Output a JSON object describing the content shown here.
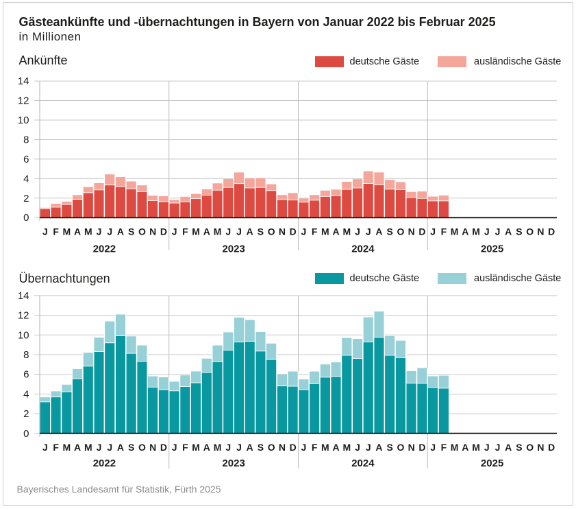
{
  "page": {
    "title": "Gästeankünfte und -übernachtungen in Bayern von Januar 2022 bis Februar 2025",
    "subtitle": "in Millionen",
    "footer": "Bayerisches Landesamt für Statistik, Fürth 2025"
  },
  "colors": {
    "arrivals_domestic": "#dd4a42",
    "arrivals_foreign": "#f4a69b",
    "overnight_domestic": "#0a98a0",
    "overnight_foreign": "#98d0d8",
    "gridline": "#c8c8c8",
    "axis_line": "#b0b0b0",
    "baseline": "#21211f",
    "year_separator": "#bcbcbc",
    "text": "#1d1d1b",
    "footer_text": "#8b8b8b"
  },
  "legend_labels": {
    "domestic": "deutsche Gäste",
    "foreign": "ausländische Gäste"
  },
  "chart_data": [
    {
      "type": "bar",
      "stacked": true,
      "title": "Ankünfte",
      "unit": "in Millionen",
      "ylim": [
        0,
        14
      ],
      "yticks": [
        0,
        2,
        4,
        6,
        8,
        10,
        12,
        14
      ],
      "grid": true,
      "legend_position": "top-right",
      "month_letters": [
        "J",
        "F",
        "M",
        "A",
        "M",
        "J",
        "J",
        "A",
        "S",
        "O",
        "N",
        "D"
      ],
      "years": [
        "2022",
        "2023",
        "2024",
        "2025"
      ],
      "x_range": "Januar 2022 - Februar 2025",
      "series": [
        {
          "name": "deutsche Gäste",
          "color": "#dd4a42",
          "values": [
            0.86,
            1.04,
            1.31,
            1.84,
            2.52,
            2.81,
            3.31,
            3.15,
            2.92,
            2.63,
            1.71,
            1.6,
            1.46,
            1.59,
            1.91,
            2.27,
            2.78,
            3.06,
            3.45,
            3.01,
            3.06,
            2.74,
            1.82,
            1.77,
            1.55,
            1.75,
            2.14,
            2.2,
            2.86,
            3.01,
            3.46,
            3.33,
            2.88,
            2.83,
            2.02,
            1.93,
            1.68,
            1.68
          ]
        },
        {
          "name": "ausländische Gäste",
          "color": "#f4a69b",
          "values": [
            0.15,
            0.38,
            0.33,
            0.47,
            0.61,
            0.72,
            1.12,
            1.01,
            0.79,
            0.68,
            0.54,
            0.6,
            0.36,
            0.55,
            0.52,
            0.63,
            0.73,
            0.89,
            1.18,
            1.02,
            0.99,
            0.68,
            0.5,
            0.75,
            0.4,
            0.57,
            0.63,
            0.67,
            0.81,
            0.93,
            1.29,
            1.3,
            0.99,
            0.81,
            0.61,
            0.75,
            0.48,
            0.59
          ]
        }
      ]
    },
    {
      "type": "bar",
      "stacked": true,
      "title": "Übernachtungen",
      "unit": "in Millionen",
      "ylim": [
        0,
        14
      ],
      "yticks": [
        0,
        2,
        4,
        6,
        8,
        10,
        12,
        14
      ],
      "grid": true,
      "legend_position": "top-right",
      "month_letters": [
        "J",
        "F",
        "M",
        "A",
        "M",
        "J",
        "J",
        "A",
        "S",
        "O",
        "N",
        "D"
      ],
      "years": [
        "2022",
        "2023",
        "2024",
        "2025"
      ],
      "x_range": "Januar 2022 - Februar 2025",
      "series": [
        {
          "name": "deutsche Gäste",
          "color": "#0a98a0",
          "values": [
            3.17,
            3.67,
            4.2,
            5.53,
            6.8,
            8.28,
            9.17,
            9.89,
            8.1,
            7.28,
            4.67,
            4.41,
            4.29,
            4.73,
            5.11,
            6.15,
            7.25,
            8.43,
            9.25,
            9.32,
            8.33,
            7.48,
            4.79,
            4.76,
            4.41,
            5.02,
            5.68,
            5.76,
            7.9,
            7.58,
            9.26,
            9.73,
            7.9,
            7.67,
            5.07,
            5.05,
            4.64,
            4.56
          ]
        },
        {
          "name": "ausländische Gäste",
          "color": "#98d0d8",
          "values": [
            0.5,
            0.61,
            0.75,
            1.01,
            1.4,
            1.45,
            2.21,
            2.19,
            1.76,
            1.66,
            1.13,
            1.29,
            0.97,
            1.17,
            1.19,
            1.45,
            1.69,
            1.84,
            2.52,
            2.22,
            1.98,
            1.65,
            1.2,
            1.53,
            1.08,
            1.27,
            1.33,
            1.46,
            1.8,
            2.02,
            2.54,
            2.66,
            1.99,
            1.75,
            1.26,
            1.6,
            1.17,
            1.31
          ]
        }
      ]
    }
  ]
}
